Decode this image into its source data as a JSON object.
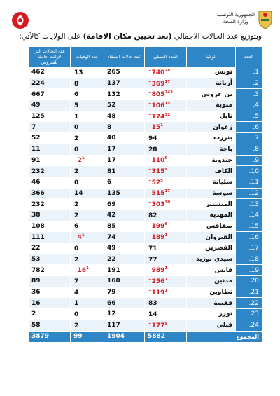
{
  "header": {
    "republic": "الجمهورية التونسية",
    "ministry": "وزارة الصحة"
  },
  "intro": {
    "prefix": "وبتوزيع عدد الحالات الاجمالي ",
    "bold": "(بعد تحيين مكان الاقامة)",
    "suffix": " على الولايات كالآتي:"
  },
  "table": {
    "headers": {
      "num": "العدد",
      "governorate": "الولاية",
      "total": "العدد الجملي",
      "recovered": "عدد حالات الشفاء",
      "deaths": "عدد الوفيات",
      "active": "عدد الحالات التي لازالت حاملة للفيروس"
    },
    "rows": [
      {
        "num": "1.",
        "governorate": "تونس",
        "total": "740",
        "total_delta": "28+",
        "recovered": "265",
        "deaths": "13",
        "deaths_delta": "",
        "active": "462"
      },
      {
        "num": "2.",
        "governorate": "أريانة",
        "total": "369",
        "total_delta": "17+",
        "recovered": "137",
        "deaths": "8",
        "deaths_delta": "",
        "active": "224"
      },
      {
        "num": "3.",
        "governorate": "بن عروس",
        "total": "805",
        "total_delta": "243+",
        "recovered": "132",
        "deaths": "6",
        "deaths_delta": "",
        "active": "667"
      },
      {
        "num": "4.",
        "governorate": "منوبة",
        "total": "106",
        "total_delta": "15+",
        "recovered": "52",
        "deaths": "5",
        "deaths_delta": "",
        "active": "49"
      },
      {
        "num": "5.",
        "governorate": "نابل",
        "total": "174",
        "total_delta": "32+",
        "recovered": "48",
        "deaths": "1",
        "deaths_delta": "",
        "active": "125"
      },
      {
        "num": "6.",
        "governorate": "زغوان",
        "total": "15",
        "total_delta": "1+",
        "recovered": "8",
        "deaths": "0",
        "deaths_delta": "",
        "active": "7"
      },
      {
        "num": "7.",
        "governorate": "بنزرت",
        "total": "94",
        "total_delta": "",
        "recovered": "40",
        "deaths": "2",
        "deaths_delta": "",
        "active": "52"
      },
      {
        "num": "8.",
        "governorate": "باجة",
        "total": "28",
        "total_delta": "",
        "recovered": "17",
        "deaths": "0",
        "deaths_delta": "",
        "active": "11"
      },
      {
        "num": "9.",
        "governorate": "جندوبة",
        "total": "110",
        "total_delta": "9+",
        "recovered": "17",
        "deaths": "2",
        "deaths_delta": "1+",
        "active": "91"
      },
      {
        "num": "10.",
        "governorate": "الكاف",
        "total": "315",
        "total_delta": "9+",
        "recovered": "81",
        "deaths": "2",
        "deaths_delta": "",
        "active": "232"
      },
      {
        "num": "11.",
        "governorate": "سليانة",
        "total": "52",
        "total_delta": "5+",
        "recovered": "6",
        "deaths": "0",
        "deaths_delta": "",
        "active": "46"
      },
      {
        "num": "12.",
        "governorate": "سوسة",
        "total": "515",
        "total_delta": "17+",
        "recovered": "135",
        "deaths": "14",
        "deaths_delta": "",
        "active": "366"
      },
      {
        "num": "13.",
        "governorate": "المنستير",
        "total": "303",
        "total_delta": "30+",
        "recovered": "69",
        "deaths": "2",
        "deaths_delta": "",
        "active": "232"
      },
      {
        "num": "14.",
        "governorate": "المهدية",
        "total": "82",
        "total_delta": "",
        "recovered": "42",
        "deaths": "2",
        "deaths_delta": "",
        "active": "38"
      },
      {
        "num": "15.",
        "governorate": "صفاقس",
        "total": "199",
        "total_delta": "6+",
        "recovered": "85",
        "deaths": "6",
        "deaths_delta": "",
        "active": "108"
      },
      {
        "num": "16.",
        "governorate": "القيروان",
        "total": "189",
        "total_delta": "1+",
        "recovered": "74",
        "deaths": "4",
        "deaths_delta": "1+",
        "active": "111"
      },
      {
        "num": "17.",
        "governorate": "القصرين",
        "total": "71",
        "total_delta": "",
        "recovered": "49",
        "deaths": "0",
        "deaths_delta": "",
        "active": "22"
      },
      {
        "num": "18.",
        "governorate": "سيدي بوزيد",
        "total": "77",
        "total_delta": "",
        "recovered": "22",
        "deaths": "2",
        "deaths_delta": "",
        "active": "53"
      },
      {
        "num": "19.",
        "governorate": "قابس",
        "total": "989",
        "total_delta": "1+",
        "recovered": "191",
        "deaths": "16",
        "deaths_delta": "1+",
        "active": "782"
      },
      {
        "num": "20.",
        "governorate": "مدنين",
        "total": "256",
        "total_delta": "7+",
        "recovered": "160",
        "deaths": "7",
        "deaths_delta": "",
        "active": "89"
      },
      {
        "num": "21.",
        "governorate": "تطاوين",
        "total": "119",
        "total_delta": "1+",
        "recovered": "79",
        "deaths": "4",
        "deaths_delta": "",
        "active": "36"
      },
      {
        "num": "22.",
        "governorate": "قفصة",
        "total": "83",
        "total_delta": "",
        "recovered": "66",
        "deaths": "1",
        "deaths_delta": "",
        "active": "16"
      },
      {
        "num": "23.",
        "governorate": "توزر",
        "total": "14",
        "total_delta": "",
        "recovered": "12",
        "deaths": "0",
        "deaths_delta": "",
        "active": "2"
      },
      {
        "num": "24.",
        "governorate": "قبلي",
        "total": "177",
        "total_delta": "9+",
        "recovered": "117",
        "deaths": "2",
        "deaths_delta": "",
        "active": "58"
      }
    ],
    "totals": {
      "label": "المجموع",
      "total": "5882",
      "recovered": "1904",
      "deaths": "99",
      "active": "3879"
    }
  },
  "colors": {
    "header_blue": "#2f86c7",
    "row_alt": "#eaf2fa",
    "highlight_red": "#d71920"
  }
}
